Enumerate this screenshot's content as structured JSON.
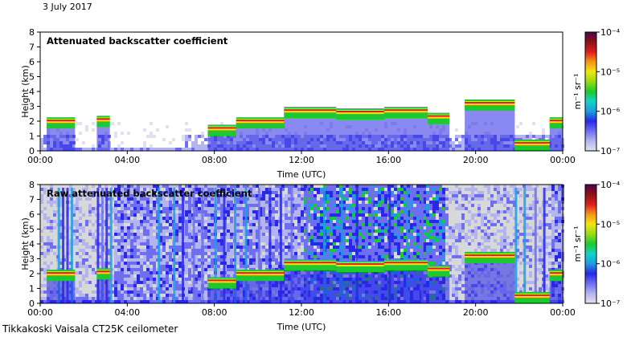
{
  "date": "3 July 2017",
  "footer": "Tikkakoski Vaisala CT25K ceilometer",
  "colors": {
    "scale": [
      "#e1e1ef",
      "#b4b4ee",
      "#6e6ef0",
      "#2828e6",
      "#1e9ce0",
      "#15d2c8",
      "#1ec832",
      "#96dc14",
      "#f0e614",
      "#f59614",
      "#dc1e1e",
      "#8c1414",
      "#500050"
    ],
    "no_data": "#d8d8d8",
    "background": "#ffffff"
  },
  "chart_data": [
    {
      "type": "heatmap",
      "title": "Attenuated backscatter coefficient",
      "xlabel": "Time (UTC)",
      "ylabel": "Height (km)",
      "x_ticks": [
        "00:00",
        "04:00",
        "08:00",
        "12:00",
        "16:00",
        "20:00",
        "00:00"
      ],
      "y_ticks": [
        "0",
        "1",
        "2",
        "3",
        "4",
        "5",
        "6",
        "7",
        "8"
      ],
      "xlim": [
        0,
        24
      ],
      "ylim": [
        0,
        8
      ],
      "colorbar": {
        "label": "m⁻¹ sr⁻¹",
        "scale": "log",
        "ticks": [
          "10⁻⁴",
          "10⁻⁵",
          "10⁻⁶",
          "10⁻⁷"
        ],
        "range": [
          1e-07,
          0.0001
        ]
      },
      "cloud_layers": [
        {
          "t": [
            0.3,
            1.6
          ],
          "height": 2.1
        },
        {
          "t": [
            2.6,
            3.2
          ],
          "height": 2.2
        },
        {
          "t": [
            7.7,
            9.0
          ],
          "height": 1.6
        },
        {
          "t": [
            9.0,
            11.2
          ],
          "height": 2.1
        },
        {
          "t": [
            11.2,
            13.6
          ],
          "height": 2.8
        },
        {
          "t": [
            13.6,
            15.8
          ],
          "height": 2.7
        },
        {
          "t": [
            15.8,
            17.8
          ],
          "height": 2.8
        },
        {
          "t": [
            17.8,
            18.8
          ],
          "height": 2.4
        },
        {
          "t": [
            19.5,
            21.8
          ],
          "height": 3.3
        },
        {
          "t": [
            21.8,
            23.4
          ],
          "height": 0.6
        },
        {
          "t": [
            23.4,
            24.0
          ],
          "height": 2.1
        }
      ]
    },
    {
      "type": "heatmap",
      "title": "Raw attenuated backscatter coefficient",
      "xlabel": "Time (UTC)",
      "ylabel": "Height (km)",
      "x_ticks": [
        "00:00",
        "04:00",
        "08:00",
        "12:00",
        "16:00",
        "20:00",
        "00:00"
      ],
      "y_ticks": [
        "0",
        "1",
        "2",
        "3",
        "4",
        "5",
        "6",
        "7",
        "8"
      ],
      "xlim": [
        0,
        24
      ],
      "ylim": [
        0,
        8
      ],
      "colorbar": {
        "label": "m⁻¹ sr⁻¹",
        "scale": "log",
        "ticks": [
          "10⁻⁴",
          "10⁻⁵",
          "10⁻⁶",
          "10⁻⁷"
        ],
        "range": [
          1e-07,
          0.0001
        ]
      },
      "cloud_layers": [
        {
          "t": [
            0.3,
            1.6
          ],
          "height": 2.1
        },
        {
          "t": [
            2.6,
            3.2
          ],
          "height": 2.2
        },
        {
          "t": [
            7.7,
            9.0
          ],
          "height": 1.6
        },
        {
          "t": [
            9.0,
            11.2
          ],
          "height": 2.1
        },
        {
          "t": [
            11.2,
            13.6
          ],
          "height": 2.8
        },
        {
          "t": [
            13.6,
            15.8
          ],
          "height": 2.7
        },
        {
          "t": [
            15.8,
            17.8
          ],
          "height": 2.8
        },
        {
          "t": [
            17.8,
            18.8
          ],
          "height": 2.4
        },
        {
          "t": [
            19.5,
            21.8
          ],
          "height": 3.3
        },
        {
          "t": [
            21.8,
            23.4
          ],
          "height": 0.6
        },
        {
          "t": [
            23.4,
            24.0
          ],
          "height": 2.1
        }
      ]
    }
  ]
}
